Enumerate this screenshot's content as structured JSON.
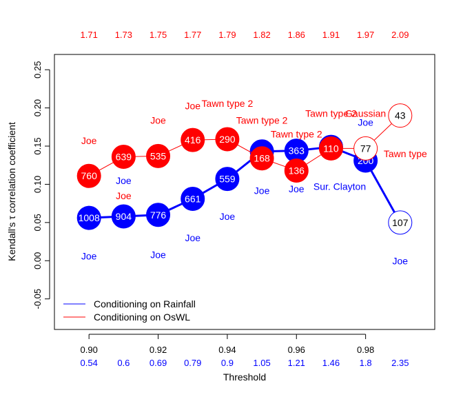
{
  "chart_data": {
    "type": "line",
    "xlabel": "Threshold",
    "ylabel": "Kendall's τ correlation coefficient",
    "xlim": [
      0.89,
      1.0
    ],
    "ylim": [
      -0.09,
      0.27
    ],
    "x_ticks": [
      0.9,
      0.92,
      0.94,
      0.96,
      0.98
    ],
    "x_tick_labels": [
      "0.90",
      "0.92",
      "0.94",
      "0.96",
      "0.98"
    ],
    "y_ticks": [
      -0.05,
      0.0,
      0.05,
      0.1,
      0.15,
      0.2,
      0.25
    ],
    "y_tick_labels": [
      "-0.05",
      "0.00",
      "0.05",
      "0.10",
      "0.15",
      "0.20",
      "0.25"
    ],
    "x": [
      0.9,
      0.91,
      0.92,
      0.93,
      0.94,
      0.95,
      0.96,
      0.97,
      0.98,
      0.99
    ],
    "top_axis": {
      "labels": [
        "1.71",
        "1.73",
        "1.75",
        "1.77",
        "1.79",
        "1.82",
        "1.86",
        "1.91",
        "1.97",
        "2.09"
      ],
      "color": "#ff0000"
    },
    "bottom_axis_second_row": {
      "labels": [
        "0.54",
        "0.6",
        "0.69",
        "0.79",
        "0.9",
        "1.05",
        "1.21",
        "1.46",
        "1.8",
        "2.35"
      ],
      "color": "#0000ff"
    },
    "legend": {
      "placement": "bottom-left",
      "entries": [
        {
          "label": "Conditioning on Rainfall",
          "color": "#0000ff"
        },
        {
          "label": "Conditioning on OsWL",
          "color": "#ff0000"
        }
      ]
    },
    "series": [
      {
        "color": "#0000ff",
        "values": [
          0.056,
          0.058,
          0.06,
          0.081,
          0.107,
          0.143,
          0.144,
          0.149,
          0.131,
          0.05
        ],
        "point_labels": [
          "1008",
          "904",
          "776",
          "661",
          "559",
          "",
          "363",
          "",
          "200",
          "107"
        ],
        "filled": [
          true,
          true,
          true,
          true,
          true,
          true,
          true,
          true,
          true,
          false
        ],
        "copula_labels": [
          {
            "text": "Joe",
            "x": 0.9,
            "y": 0.006
          },
          {
            "text": "Joe",
            "x": 0.91,
            "y": 0.105
          },
          {
            "text": "Joe",
            "x": 0.92,
            "y": 0.008
          },
          {
            "text": "Joe",
            "x": 0.93,
            "y": 0.03
          },
          {
            "text": "Joe",
            "x": 0.94,
            "y": 0.058
          },
          {
            "text": "Joe",
            "x": 0.95,
            "y": 0.092
          },
          {
            "text": "Joe",
            "x": 0.96,
            "y": 0.094
          },
          {
            "text": "Sur. Clayton",
            "x": 0.9725,
            "y": 0.097
          },
          {
            "text": "Joe",
            "x": 0.98,
            "y": 0.181
          },
          {
            "text": "Joe",
            "x": 0.99,
            "y": 0.0
          }
        ]
      },
      {
        "color": "#ff0000",
        "values": [
          0.111,
          0.136,
          0.137,
          0.158,
          0.159,
          0.134,
          0.118,
          0.147,
          0.147,
          0.19
        ],
        "point_labels": [
          "760",
          "639",
          "535",
          "416",
          "290",
          "168",
          "136",
          "110",
          "77",
          "43"
        ],
        "filled": [
          true,
          true,
          true,
          true,
          true,
          true,
          true,
          true,
          false,
          false
        ],
        "copula_labels": [
          {
            "text": "Joe",
            "x": 0.9,
            "y": 0.157
          },
          {
            "text": "Joe",
            "x": 0.91,
            "y": 0.085
          },
          {
            "text": "Joe",
            "x": 0.92,
            "y": 0.184
          },
          {
            "text": "Joe",
            "x": 0.93,
            "y": 0.203
          },
          {
            "text": "Tawn type 2",
            "x": 0.94,
            "y": 0.206
          },
          {
            "text": "Tawn type 2",
            "x": 0.95,
            "y": 0.184
          },
          {
            "text": "Tawn type 2",
            "x": 0.96,
            "y": 0.166
          },
          {
            "text": "Tawn type 2",
            "x": 0.97,
            "y": 0.193
          },
          {
            "text": "Gaussian",
            "x": 0.98,
            "y": 0.193
          },
          {
            "text": "Tawn type",
            "x": 0.9915,
            "y": 0.14
          }
        ]
      }
    ]
  }
}
